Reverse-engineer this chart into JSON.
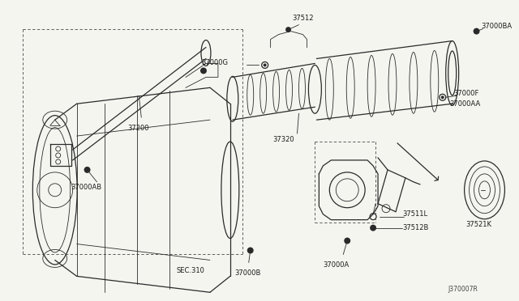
{
  "bg_color": "#f5f5f0",
  "line_color": "#2a2a2a",
  "label_color": "#1a1a1a",
  "fs": 6.0,
  "fig_id": "J370007R",
  "xlim": [
    0,
    640
  ],
  "ylim": [
    0,
    372
  ]
}
